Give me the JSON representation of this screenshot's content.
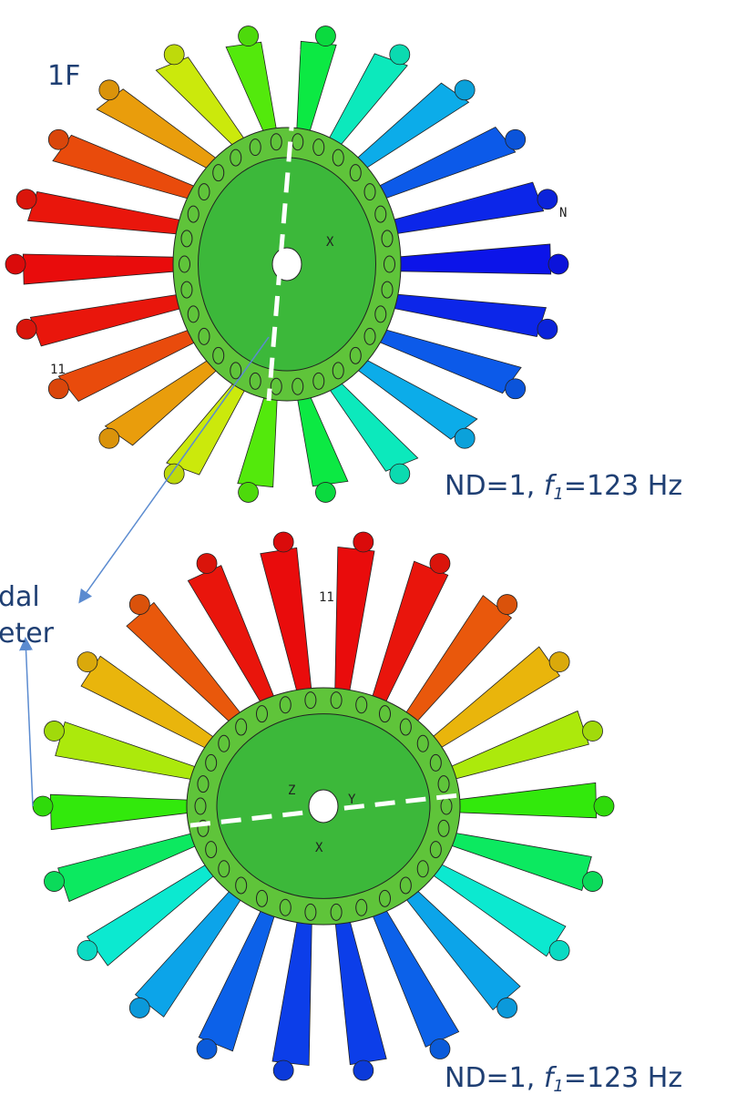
{
  "panels": [
    {
      "label": "1F",
      "caption": {
        "prefix": "ND=1, ",
        "f": "f",
        "sub": "1",
        "suffix": "=123 Hz"
      },
      "node_label": "11",
      "axes": [
        "X",
        "N"
      ]
    },
    {
      "caption": {
        "prefix": "ND=1, ",
        "f": "f",
        "sub": "1",
        "suffix": "=123 Hz"
      },
      "node_label": "11",
      "axes": [
        "Z",
        "Y",
        "X"
      ]
    }
  ],
  "annotation": {
    "line1": "dal",
    "line2": "eter"
  }
}
